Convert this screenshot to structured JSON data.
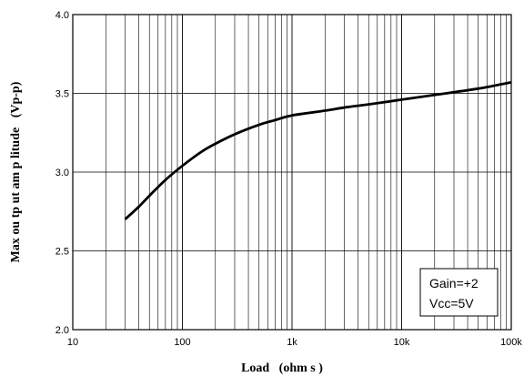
{
  "chart_data": {
    "type": "line",
    "xlabel": "Load   (ohm s )",
    "ylabel": "Max ou tp ut am p litude   (Vp-p)",
    "x_scale": "log",
    "xlim": [
      10,
      100000
    ],
    "ylim": [
      2.0,
      4.0
    ],
    "x_ticks": [
      {
        "value": 10,
        "label": "10"
      },
      {
        "value": 100,
        "label": "100"
      },
      {
        "value": 1000,
        "label": "1k"
      },
      {
        "value": 10000,
        "label": "10k"
      },
      {
        "value": 100000,
        "label": "100k"
      }
    ],
    "y_ticks": [
      {
        "value": 2.0,
        "label": "2.0"
      },
      {
        "value": 2.5,
        "label": "2.5"
      },
      {
        "value": 3.0,
        "label": "3.0"
      },
      {
        "value": 3.5,
        "label": "3.5"
      },
      {
        "value": 4.0,
        "label": "4.0"
      }
    ],
    "grid": true,
    "series": [
      {
        "x": [
          30,
          40,
          50,
          70,
          100,
          150,
          200,
          300,
          500,
          700,
          1000,
          2000,
          3000,
          5000,
          10000,
          20000,
          50000,
          100000
        ],
        "y": [
          2.7,
          2.78,
          2.85,
          2.95,
          3.04,
          3.13,
          3.18,
          3.24,
          3.3,
          3.33,
          3.36,
          3.39,
          3.41,
          3.43,
          3.46,
          3.49,
          3.53,
          3.57
        ]
      }
    ],
    "annotation": {
      "lines": [
        "Gain=+2",
        "Vcc=5V"
      ],
      "placement": "bottom-right"
    }
  }
}
